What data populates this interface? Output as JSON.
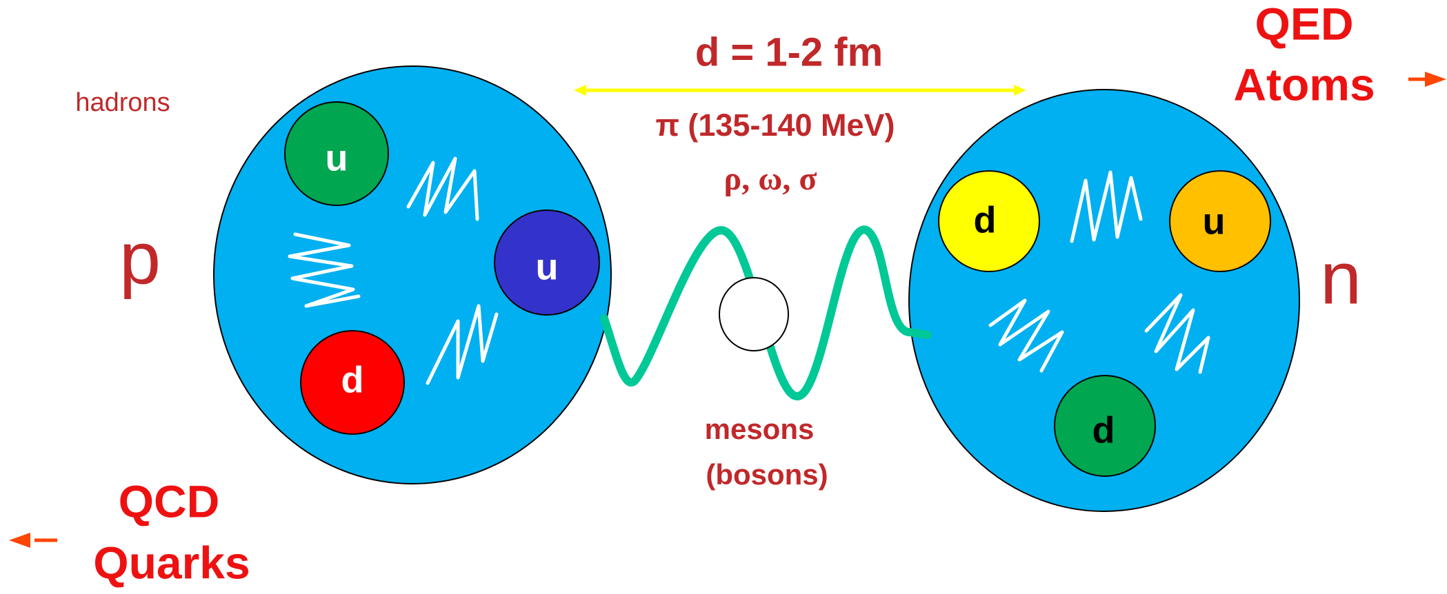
{
  "title": "d = 1-2 fm",
  "exchange": {
    "pion": "π  (135-140 MeV)",
    "others": "ρ,  ω,  σ",
    "mesons": "mesons",
    "bosons": "(bosons)"
  },
  "hadrons_label": "hadrons",
  "proton": {
    "label": "p",
    "quarks": [
      "u",
      "u",
      "d"
    ]
  },
  "neutron": {
    "label": "n",
    "quarks": [
      "d",
      "u",
      "d"
    ]
  },
  "qed": {
    "line1": "QED",
    "line2": "Atoms"
  },
  "qcd": {
    "line1": "QCD",
    "line2": "Quarks"
  }
}
